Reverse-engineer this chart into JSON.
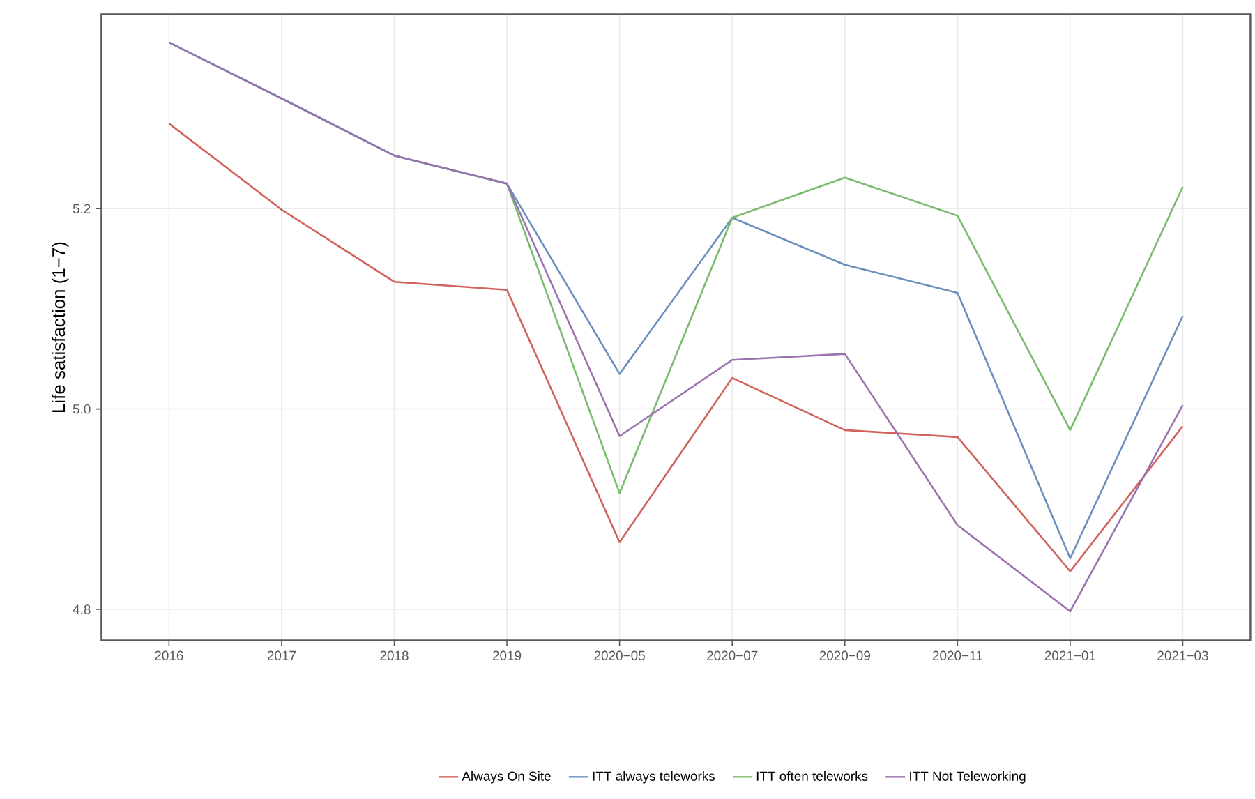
{
  "chart_data": {
    "type": "line",
    "ylabel": "Life satisfaction (1−7)",
    "categories": [
      "2016",
      "2017",
      "2018",
      "2019",
      "2020−05",
      "2020−07",
      "2020−09",
      "2020−11",
      "2021−01",
      "2021−03"
    ],
    "series": [
      {
        "name": "Always On Site",
        "color": "#d0625b",
        "values": [
          5.285,
          5.199,
          5.127,
          5.119,
          4.867,
          5.031,
          4.979,
          4.972,
          4.838,
          4.983
        ]
      },
      {
        "name": "ITT always teleworks",
        "color": "#6a8fbf",
        "values": [
          5.366,
          5.31,
          5.253,
          5.225,
          5.035,
          5.191,
          5.144,
          5.116,
          4.851,
          5.093
        ]
      },
      {
        "name": "ITT often teleworks",
        "color": "#79bb6c",
        "values": [
          5.366,
          5.31,
          5.253,
          5.225,
          4.916,
          5.191,
          5.231,
          5.193,
          4.979,
          5.222
        ]
      },
      {
        "name": "ITT Not Teleworking",
        "color": "#9a72b0",
        "values": [
          5.366,
          5.31,
          5.253,
          5.225,
          4.973,
          5.049,
          5.055,
          4.884,
          4.798,
          5.004
        ]
      }
    ],
    "ylim": [
      4.769,
      5.394
    ],
    "yticks": [
      4.8,
      {
        "value": 5,
        "label": "5.0"
      },
      5.2
    ],
    "grid": true,
    "legend": "bottom",
    "marker": "none",
    "line_style": "solid"
  }
}
